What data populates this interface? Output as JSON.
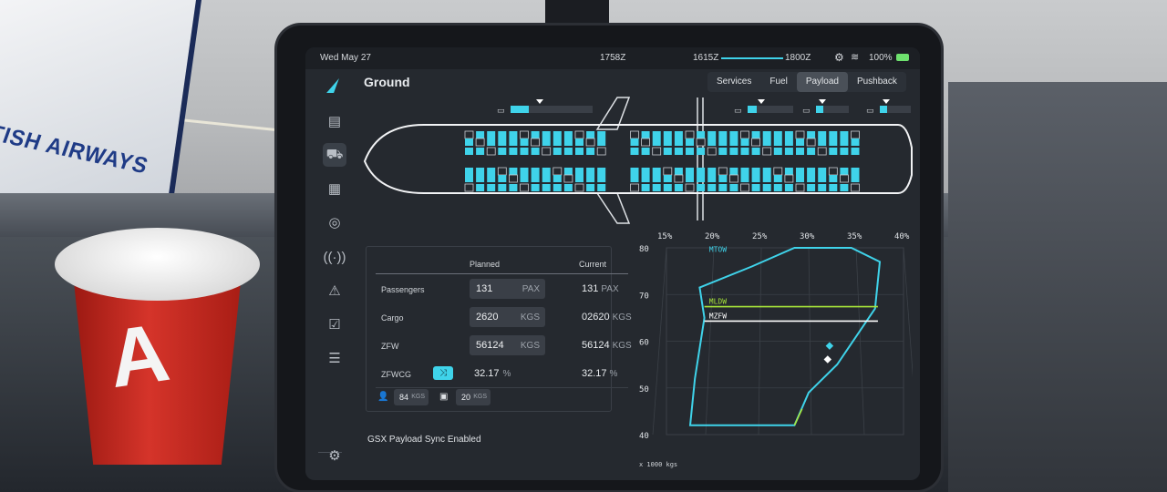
{
  "scene": {
    "jetbridge_text": "ITISH AIRWAYS"
  },
  "status": {
    "date": "Wed May 27",
    "time_now": "1758Z",
    "time_start": "1615Z",
    "time_end": "1800Z",
    "battery": "100%"
  },
  "page": {
    "title": "Ground"
  },
  "tabs": [
    {
      "label": "Services",
      "active": false
    },
    {
      "label": "Fuel",
      "active": false
    },
    {
      "label": "Payload",
      "active": true
    },
    {
      "label": "Pushback",
      "active": false
    }
  ],
  "sidebar": [
    {
      "icon": "clipboard-icon"
    },
    {
      "icon": "truck-icon"
    },
    {
      "icon": "calculator-icon"
    },
    {
      "icon": "compass-icon"
    },
    {
      "icon": "antenna-icon"
    },
    {
      "icon": "warning-icon"
    },
    {
      "icon": "checklist-icon"
    },
    {
      "icon": "sliders-icon"
    },
    {
      "icon": "gear-icon"
    }
  ],
  "payload": {
    "col_planned": "Planned",
    "col_current": "Current",
    "rows": [
      {
        "label": "Passengers",
        "planned": "131",
        "unit": "PAX",
        "current": "131",
        "current_unit": "PAX"
      },
      {
        "label": "Cargo",
        "planned": "2620",
        "unit": "KGS",
        "current": "02620",
        "current_unit": "KGS"
      },
      {
        "label": "ZFW",
        "planned": "56124",
        "unit": "KGS",
        "current": "56124",
        "current_unit": "KGS"
      }
    ],
    "zfwcg": {
      "label": "ZFWCG",
      "planned": "32.17",
      "unit": "%",
      "current": "32.17",
      "current_unit": "%"
    },
    "pax_weight": {
      "value": "84",
      "unit": "KGS"
    },
    "bag_weight": {
      "value": "20",
      "unit": "KGS"
    }
  },
  "footer": "GSX Payload Sync Enabled",
  "chart_data": {
    "type": "scatter",
    "x_ticks": [
      "15%",
      "20%",
      "25%",
      "30%",
      "35%",
      "40%"
    ],
    "y_ticks": [
      "80",
      "70",
      "60",
      "50",
      "40"
    ],
    "xlim": [
      15,
      40
    ],
    "ylim": [
      40,
      80
    ],
    "unit_label": "x 1000 kgs",
    "envelope": [
      [
        18.5,
        71.5
      ],
      [
        24,
        76
      ],
      [
        28.5,
        80
      ],
      [
        34.5,
        80
      ],
      [
        37.5,
        77
      ],
      [
        37,
        67
      ],
      [
        33,
        55
      ],
      [
        30,
        49
      ],
      [
        28.5,
        42
      ],
      [
        17.5,
        42
      ],
      [
        18,
        52
      ],
      [
        19,
        65
      ]
    ],
    "limits": [
      {
        "name": "MTOW",
        "value": 78.5,
        "color": "#3fd3ea"
      },
      {
        "name": "MLDW",
        "value": 67.4,
        "color": "#a8e63a"
      },
      {
        "name": "MZFW",
        "value": 64.3,
        "color": "#ffffff"
      }
    ],
    "points": [
      {
        "x": 32.2,
        "y": 59.0,
        "color": "#3fd3ea"
      },
      {
        "x": 32.0,
        "y": 56.1,
        "color": "#ffffff"
      }
    ],
    "colors": {
      "accent": "#3fd3ea",
      "mldw": "#a8e63a"
    }
  }
}
